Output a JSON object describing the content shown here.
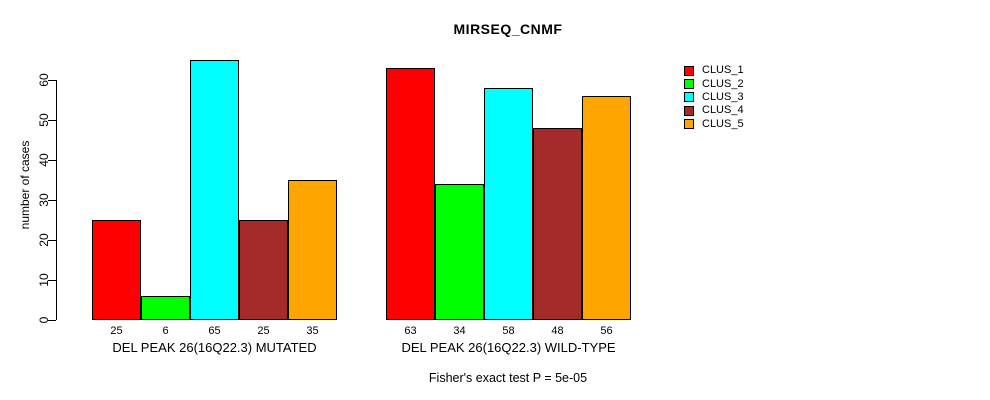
{
  "title": "MIRSEQ_CNMF",
  "footer": "Fisher's exact test P = 5e-05",
  "chart_data": {
    "type": "bar",
    "title": "MIRSEQ_CNMF",
    "xlabel": "",
    "ylabel": "number of cases",
    "ylim": [
      0,
      65
    ],
    "yticks": [
      0,
      10,
      20,
      30,
      40,
      50,
      60
    ],
    "grid": false,
    "legend_position": "top-right",
    "bar_border_color": "#000000",
    "categories": [
      "CLUS_1",
      "CLUS_2",
      "CLUS_3",
      "CLUS_4",
      "CLUS_5"
    ],
    "colors": [
      "#ff0000",
      "#00ff00",
      "#00ffff",
      "#a52a2a",
      "#ffa500"
    ],
    "groups": [
      {
        "label": "DEL PEAK 26(16Q22.3) MUTATED",
        "values": [
          25,
          6,
          65,
          25,
          35
        ]
      },
      {
        "label": "DEL PEAK 26(16Q22.3) WILD-TYPE",
        "values": [
          63,
          34,
          58,
          48,
          56
        ]
      }
    ],
    "series": [
      {
        "name": "CLUS_1",
        "color": "#ff0000",
        "values": [
          25,
          63
        ]
      },
      {
        "name": "CLUS_2",
        "color": "#00ff00",
        "values": [
          6,
          34
        ]
      },
      {
        "name": "CLUS_3",
        "color": "#00ffff",
        "values": [
          65,
          58
        ]
      },
      {
        "name": "CLUS_4",
        "color": "#a52a2a",
        "values": [
          25,
          48
        ]
      },
      {
        "name": "CLUS_5",
        "color": "#ffa500",
        "values": [
          35,
          56
        ]
      }
    ],
    "value_labels_shown": true,
    "annotation": "Fisher's exact test P = 5e-05"
  },
  "legend": {
    "items": [
      {
        "label": "CLUS_1",
        "color": "#ff0000"
      },
      {
        "label": "CLUS_2",
        "color": "#00ff00"
      },
      {
        "label": "CLUS_3",
        "color": "#00ffff"
      },
      {
        "label": "CLUS_4",
        "color": "#a52a2a"
      },
      {
        "label": "CLUS_5",
        "color": "#ffa500"
      }
    ]
  }
}
